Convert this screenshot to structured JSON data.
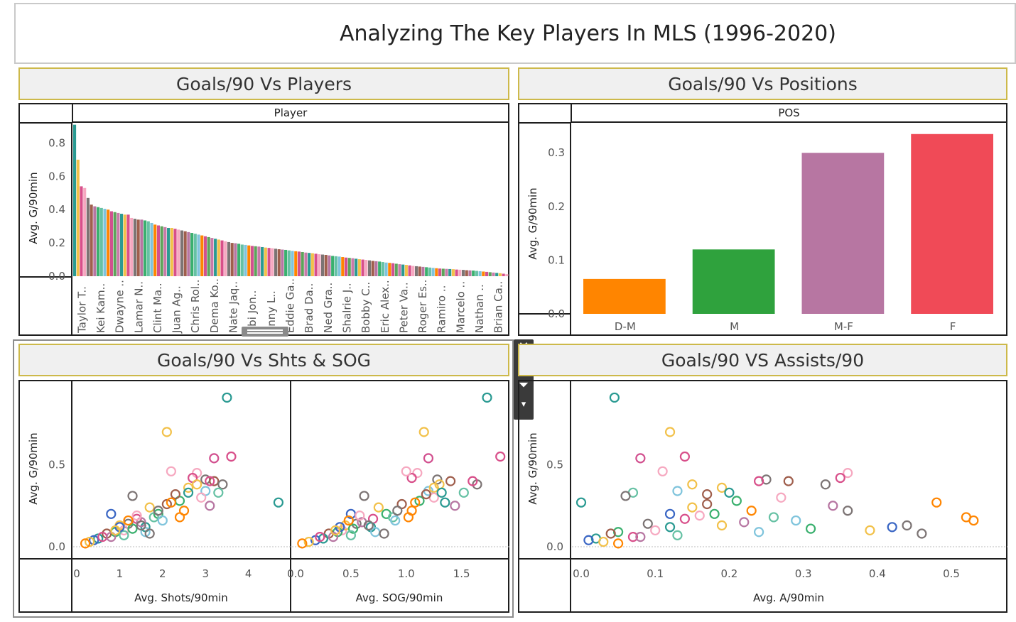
{
  "dashboard": {
    "title": "Analyzing The Key Players In MLS (1996-2020)"
  },
  "panels": {
    "players": {
      "title": "Goals/90 Vs Players",
      "header": "Player",
      "ylabel": "Avg. G/90min"
    },
    "positions": {
      "title": "Goals/90 Vs Positions",
      "header": "POS",
      "ylabel": "Avg. G/90min"
    },
    "shots": {
      "title": "Goals/90 Vs Shts & SOG",
      "ylabel": "Avg. G/90min",
      "xlabel_shots": "Avg. Shots/90min",
      "xlabel_sog": "Avg. SOG/90min"
    },
    "assists": {
      "title": "Goals/90 VS Assists/90",
      "ylabel": "Avg. G/90min",
      "xlabel": "Avg. A/90min"
    }
  },
  "toolbar": {
    "close_icon": "close-icon",
    "popout_icon": "popout-icon",
    "filter_icon": "filter-icon",
    "more_icon": "chevron-down-icon"
  },
  "chart_data": [
    {
      "type": "bar",
      "title": "Goals/90 Vs Players",
      "xlabel": "Player",
      "ylabel": "Avg. G/90min",
      "ylim": [
        0,
        0.9
      ],
      "yticks": [
        0.0,
        0.2,
        0.4,
        0.6,
        0.8
      ],
      "tick_labels": [
        "Taylor T..",
        "Kei Kam..",
        "Dwayne ..",
        "Lamar N..",
        "Clint Ma..",
        "Juan Ag..",
        "Chris Rol..",
        "Dema Ko..",
        "Nate Jaq..",
        "obi Jon..",
        "anny L..",
        "Eddie Ga..",
        "Brad Da..",
        "Ned Gra..",
        "Shalrie J..",
        "Bobby C..",
        "Eric Alex..",
        "Peter Va..",
        "Roger Es..",
        "Ramiro ..",
        "Marcelo ..",
        "Nathan ..",
        "Brian Ca.."
      ],
      "values": [
        0.91,
        0.7,
        0.54,
        0.53,
        0.47,
        0.43,
        0.42,
        0.415,
        0.41,
        0.405,
        0.4,
        0.39,
        0.385,
        0.38,
        0.375,
        0.37,
        0.37,
        0.35,
        0.345,
        0.34,
        0.34,
        0.335,
        0.33,
        0.32,
        0.31,
        0.305,
        0.3,
        0.295,
        0.29,
        0.29,
        0.285,
        0.28,
        0.275,
        0.27,
        0.265,
        0.26,
        0.255,
        0.25,
        0.245,
        0.24,
        0.235,
        0.23,
        0.225,
        0.22,
        0.215,
        0.21,
        0.205,
        0.2,
        0.198,
        0.195,
        0.19,
        0.188,
        0.185,
        0.182,
        0.18,
        0.178,
        0.175,
        0.172,
        0.17,
        0.168,
        0.165,
        0.162,
        0.16,
        0.158,
        0.155,
        0.152,
        0.15,
        0.148,
        0.145,
        0.142,
        0.14,
        0.138,
        0.135,
        0.132,
        0.13,
        0.128,
        0.125,
        0.122,
        0.12,
        0.118,
        0.115,
        0.112,
        0.11,
        0.108,
        0.105,
        0.102,
        0.1,
        0.098,
        0.095,
        0.092,
        0.09,
        0.088,
        0.085,
        0.082,
        0.08,
        0.078,
        0.075,
        0.072,
        0.07,
        0.068,
        0.065,
        0.062,
        0.06,
        0.058,
        0.056,
        0.054,
        0.052,
        0.05,
        0.048,
        0.046,
        0.045,
        0.044,
        0.043,
        0.042,
        0.04,
        0.039,
        0.038,
        0.036,
        0.035,
        0.034,
        0.032,
        0.03,
        0.028,
        0.026,
        0.024,
        0.022,
        0.02,
        0.018,
        0.015,
        0.012
      ]
    },
    {
      "type": "bar",
      "title": "Goals/90 Vs Positions",
      "xlabel": "POS",
      "ylabel": "Avg. G/90min",
      "ylim": [
        0,
        0.34
      ],
      "yticks": [
        0.0,
        0.1,
        0.2,
        0.3
      ],
      "categories": [
        "D-M",
        "M",
        "M-F",
        "F"
      ],
      "values": [
        0.065,
        0.12,
        0.3,
        0.335
      ],
      "colors": [
        "#ff8500",
        "#2fa23d",
        "#b776a2",
        "#f04a57"
      ]
    },
    {
      "type": "scatter",
      "title": "Goals/90 Vs Shts & SOG",
      "ylabel": "Avg. G/90min",
      "ylim": [
        0,
        1.0
      ],
      "yticks": [
        0.0,
        0.5
      ],
      "left": {
        "xlabel": "Avg. Shots/90min",
        "xlim": [
          0,
          4.9
        ],
        "xticks": [
          0,
          1,
          2,
          3,
          4
        ]
      },
      "right": {
        "xlabel": "Avg. SOG/90min",
        "xlim": [
          0,
          1.9
        ],
        "xticks": [
          0.0,
          0.5,
          1.0,
          1.5
        ]
      },
      "points": [
        {
          "shots": 3.5,
          "sog": 1.73,
          "g": 0.91,
          "assists": 0.045,
          "color": "#2a9a92"
        },
        {
          "shots": 2.1,
          "sog": 1.16,
          "g": 0.7,
          "assists": 0.12,
          "color": "#f2c14a"
        },
        {
          "shots": 3.2,
          "sog": 1.2,
          "g": 0.54,
          "assists": 0.08,
          "color": "#d2508f"
        },
        {
          "shots": 3.6,
          "sog": 1.85,
          "g": 0.55,
          "assists": 0.14,
          "color": "#d84f8a"
        },
        {
          "shots": 4.7,
          "sog": 1.35,
          "g": 0.27,
          "assists": 0.0,
          "color": "#2a9a92"
        },
        {
          "shots": 3.0,
          "sog": 1.28,
          "g": 0.41,
          "assists": 0.25,
          "color": "#7c7474"
        },
        {
          "shots": 3.2,
          "sog": 1.4,
          "g": 0.4,
          "assists": 0.28,
          "color": "#9f5e4c"
        },
        {
          "shots": 3.4,
          "sog": 1.64,
          "g": 0.38,
          "assists": 0.33,
          "color": "#7c7474"
        },
        {
          "shots": 3.1,
          "sog": 1.6,
          "g": 0.4,
          "assists": 0.24,
          "color": "#d84f8a"
        },
        {
          "shots": 2.8,
          "sog": 1.1,
          "g": 0.45,
          "assists": 0.36,
          "color": "#f6a8c0"
        },
        {
          "shots": 2.7,
          "sog": 1.05,
          "g": 0.42,
          "assists": 0.35,
          "color": "#d84f8a"
        },
        {
          "shots": 2.2,
          "sog": 1.0,
          "g": 0.46,
          "assists": 0.11,
          "color": "#f6a8c0"
        },
        {
          "shots": 3.3,
          "sog": 1.52,
          "g": 0.33,
          "assists": 0.07,
          "color": "#66c1a4"
        },
        {
          "shots": 3.0,
          "sog": 1.2,
          "g": 0.34,
          "assists": 0.13,
          "color": "#7fc4dc"
        },
        {
          "shots": 2.6,
          "sog": 1.25,
          "g": 0.36,
          "assists": 0.19,
          "color": "#f2c14a"
        },
        {
          "shots": 2.4,
          "sog": 1.12,
          "g": 0.28,
          "assists": 0.21,
          "color": "#3ab06e"
        },
        {
          "shots": 2.9,
          "sog": 1.25,
          "g": 0.3,
          "assists": 0.27,
          "color": "#f6a8c0"
        },
        {
          "shots": 3.1,
          "sog": 1.44,
          "g": 0.25,
          "assists": 0.34,
          "color": "#b776a2"
        },
        {
          "shots": 2.5,
          "sog": 1.05,
          "g": 0.22,
          "assists": 0.23,
          "color": "#ff8500"
        },
        {
          "shots": 2.1,
          "sog": 0.96,
          "g": 0.26,
          "assists": 0.17,
          "color": "#9f5e4c"
        },
        {
          "shots": 1.3,
          "sog": 0.62,
          "g": 0.31,
          "assists": 0.06,
          "color": "#7c7474"
        },
        {
          "shots": 0.8,
          "sog": 0.5,
          "g": 0.2,
          "assists": 0.12,
          "color": "#3a66c4"
        },
        {
          "shots": 1.7,
          "sog": 0.75,
          "g": 0.24,
          "assists": 0.15,
          "color": "#f2c14a"
        },
        {
          "shots": 1.4,
          "sog": 0.7,
          "g": 0.17,
          "assists": 0.14,
          "color": "#d84f8a"
        },
        {
          "shots": 1.9,
          "sog": 0.82,
          "g": 0.2,
          "assists": 0.18,
          "color": "#3ab06e"
        },
        {
          "shots": 1.2,
          "sog": 0.55,
          "g": 0.14,
          "assists": 0.09,
          "color": "#7c7474"
        },
        {
          "shots": 1.6,
          "sog": 0.68,
          "g": 0.12,
          "assists": 0.12,
          "color": "#2a9a92"
        },
        {
          "shots": 1.1,
          "sog": 0.42,
          "g": 0.1,
          "assists": 0.1,
          "color": "#f6a8c0"
        },
        {
          "shots": 0.9,
          "sog": 0.38,
          "g": 0.09,
          "assists": 0.05,
          "color": "#3ab06e"
        },
        {
          "shots": 0.7,
          "sog": 0.3,
          "g": 0.08,
          "assists": 0.04,
          "color": "#9f5e4c"
        },
        {
          "shots": 1.0,
          "sog": 0.45,
          "g": 0.13,
          "assists": 0.19,
          "color": "#f2c14a"
        },
        {
          "shots": 1.5,
          "sog": 0.6,
          "g": 0.15,
          "assists": 0.22,
          "color": "#b776a2"
        },
        {
          "shots": 1.8,
          "sog": 0.88,
          "g": 0.18,
          "assists": 0.26,
          "color": "#66c1a4"
        },
        {
          "shots": 2.0,
          "sog": 0.9,
          "g": 0.16,
          "assists": 0.29,
          "color": "#7fc4dc"
        },
        {
          "shots": 0.5,
          "sog": 0.25,
          "g": 0.05,
          "assists": 0.02,
          "color": "#2a9a92"
        },
        {
          "shots": 0.4,
          "sog": 0.18,
          "g": 0.04,
          "assists": 0.01,
          "color": "#3a66c4"
        },
        {
          "shots": 0.3,
          "sog": 0.12,
          "g": 0.03,
          "assists": 0.03,
          "color": "#f2c14a"
        },
        {
          "shots": 0.2,
          "sog": 0.06,
          "g": 0.02,
          "assists": 0.05,
          "color": "#ff8500"
        },
        {
          "shots": 0.6,
          "sog": 0.22,
          "g": 0.06,
          "assists": 0.07,
          "color": "#d84f8a"
        },
        {
          "shots": 1.3,
          "sog": 0.52,
          "g": 0.11,
          "assists": 0.31,
          "color": "#3ab06e"
        },
        {
          "shots": 2.3,
          "sog": 1.18,
          "g": 0.32,
          "assists": 0.17,
          "color": "#9f5e4c"
        },
        {
          "shots": 2.8,
          "sog": 1.3,
          "g": 0.38,
          "assists": 0.15,
          "color": "#f2c14a"
        },
        {
          "shots": 1.9,
          "sog": 0.92,
          "g": 0.22,
          "assists": 0.36,
          "color": "#7c7474"
        },
        {
          "shots": 2.6,
          "sog": 1.32,
          "g": 0.33,
          "assists": 0.2,
          "color": "#2a9a92"
        },
        {
          "shots": 1.1,
          "sog": 0.5,
          "g": 0.07,
          "assists": 0.13,
          "color": "#66c1a4"
        },
        {
          "shots": 0.8,
          "sog": 0.34,
          "g": 0.06,
          "assists": 0.08,
          "color": "#b776a2"
        },
        {
          "shots": 1.4,
          "sog": 0.58,
          "g": 0.19,
          "assists": 0.16,
          "color": "#f6a8c0"
        },
        {
          "shots": 1.6,
          "sog": 0.72,
          "g": 0.09,
          "assists": 0.24,
          "color": "#7fc4dc"
        },
        {
          "shots": 2.2,
          "sog": 1.08,
          "g": 0.27,
          "assists": 0.48,
          "color": "#ff8500"
        },
        {
          "shots": 1.0,
          "sog": 0.4,
          "g": 0.12,
          "assists": 0.42,
          "color": "#3a66c4"
        },
        {
          "shots": 1.5,
          "sog": 0.66,
          "g": 0.13,
          "assists": 0.44,
          "color": "#7c7474"
        },
        {
          "shots": 0.9,
          "sog": 0.36,
          "g": 0.1,
          "assists": 0.39,
          "color": "#f2c14a"
        },
        {
          "shots": 1.2,
          "sog": 0.48,
          "g": 0.16,
          "assists": 0.53,
          "color": "#ff8500"
        },
        {
          "shots": 1.7,
          "sog": 0.8,
          "g": 0.08,
          "assists": 0.46,
          "color": "#7c7474"
        },
        {
          "shots": 2.4,
          "sog": 1.02,
          "g": 0.18,
          "assists": 0.52,
          "color": "#ff8500"
        }
      ]
    },
    {
      "type": "scatter",
      "title": "Goals/90 VS Assists/90",
      "xlabel": "Avg. A/90min",
      "ylabel": "Avg. G/90min",
      "xlim": [
        0,
        0.57
      ],
      "ylim": [
        0,
        1.0
      ],
      "xticks": [
        0.0,
        0.1,
        0.2,
        0.3,
        0.4,
        0.5
      ],
      "yticks": [
        0.0,
        0.5
      ]
    }
  ]
}
